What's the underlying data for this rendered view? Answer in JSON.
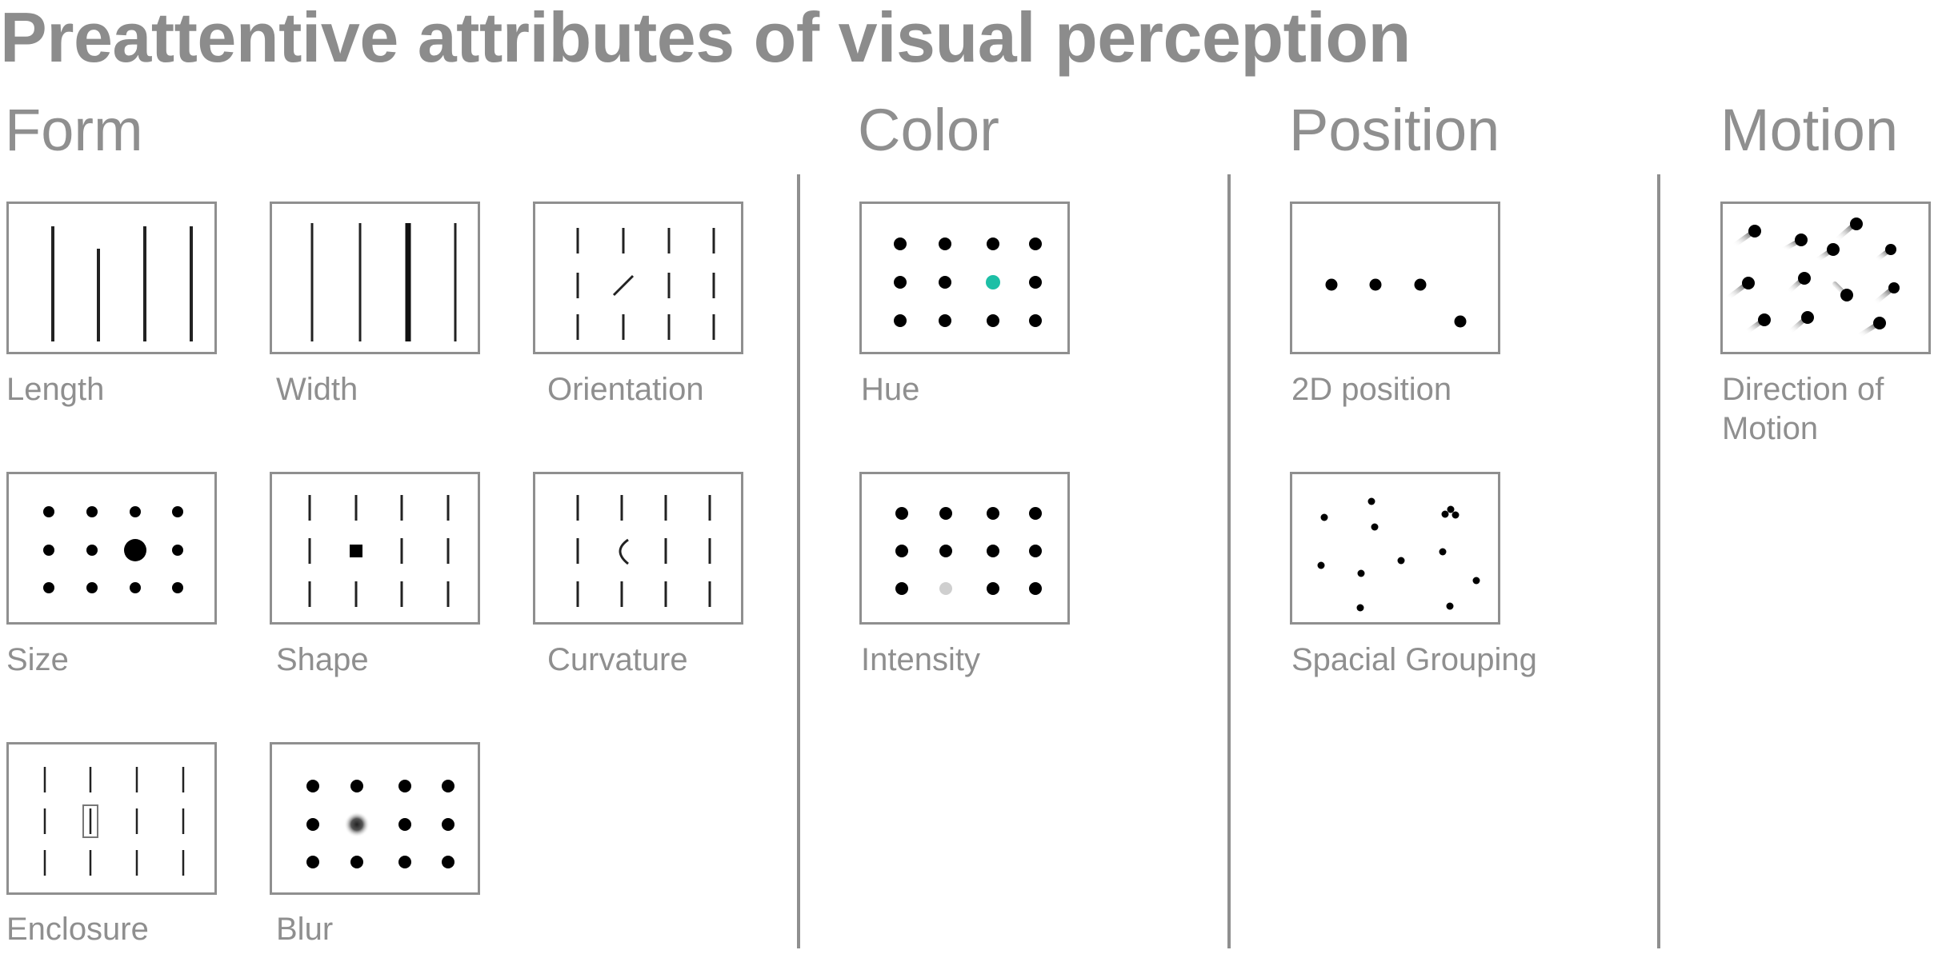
{
  "title": "Preattentive attributes of visual perception",
  "sections": {
    "form": "Form",
    "color": "Color",
    "position": "Position",
    "motion": "Motion"
  },
  "cards": {
    "length": "Length",
    "width": "Width",
    "orientation": "Orientation",
    "size": "Size",
    "shape": "Shape",
    "curvature": "Curvature",
    "enclosure": "Enclosure",
    "blur": "Blur",
    "hue": "Hue",
    "intensity": "Intensity",
    "position_2d": "2D position",
    "spacial_grouping": "Spacial Grouping",
    "direction_of_motion_line1": "Direction of",
    "direction_of_motion_line2": "Motion"
  },
  "colors": {
    "text_gray": "#8f8f8f",
    "mark_black": "#000000",
    "hue_accent": "#1dbfa6",
    "intensity_light": "#cfcfcf"
  }
}
